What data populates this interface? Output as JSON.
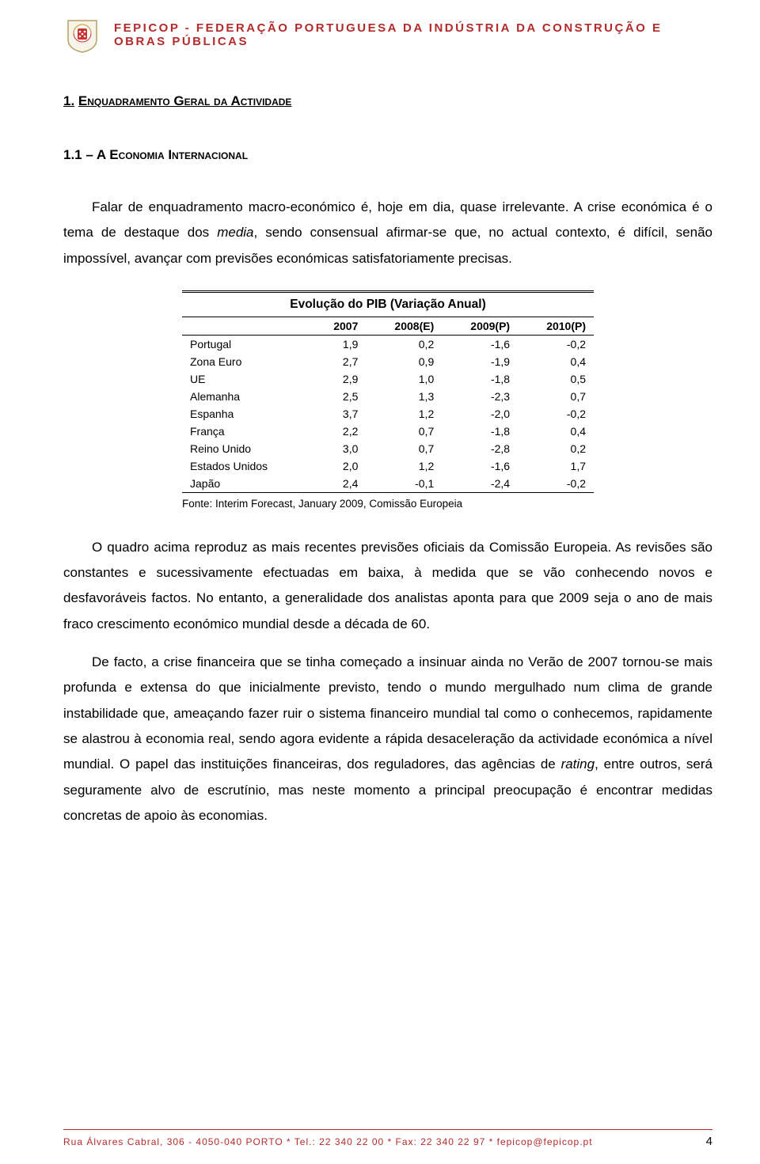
{
  "header": {
    "org": "FEPICOP - FEDERAÇÃO PORTUGUESA DA INDÚSTRIA DA CONSTRUÇÃO E OBRAS PÚBLICAS"
  },
  "section": {
    "number": "1.",
    "title": "Enquadramento Geral da Actividade"
  },
  "subsection": {
    "label": "1.1 – A Economia Internacional"
  },
  "para1a": "Falar de enquadramento macro-económico é, hoje em dia, quase irrelevante. A crise económica é o tema de destaque dos ",
  "para1b": ", sendo consensual afirmar-se que, no actual contexto, é difícil, senão impossível, avançar com previsões económicas satisfatoriamente precisas.",
  "media": "media",
  "table": {
    "caption": "Evolução do PIB (Variação Anual)",
    "columns": [
      "",
      "2007",
      "2008(E)",
      "2009(P)",
      "2010(P)"
    ],
    "rows": [
      [
        "Portugal",
        "1,9",
        "0,2",
        "-1,6",
        "-0,2"
      ],
      [
        "Zona Euro",
        "2,7",
        "0,9",
        "-1,9",
        "0,4"
      ],
      [
        "UE",
        "2,9",
        "1,0",
        "-1,8",
        "0,5"
      ],
      [
        "Alemanha",
        "2,5",
        "1,3",
        "-2,3",
        "0,7"
      ],
      [
        "Espanha",
        "3,7",
        "1,2",
        "-2,0",
        "-0,2"
      ],
      [
        "França",
        "2,2",
        "0,7",
        "-1,8",
        "0,4"
      ],
      [
        "Reino Unido",
        "3,0",
        "0,7",
        "-2,8",
        "0,2"
      ],
      [
        "Estados Unidos",
        "2,0",
        "1,2",
        "-1,6",
        "1,7"
      ],
      [
        "Japão",
        "2,4",
        "-0,1",
        "-2,4",
        "-0,2"
      ]
    ],
    "source": "Fonte: Interim Forecast, January 2009, Comissão Europeia"
  },
  "para2": "O quadro acima reproduz as mais recentes previsões oficiais da Comissão Europeia. As revisões são constantes e sucessivamente efectuadas em baixa, à medida que se vão conhecendo novos e desfavoráveis factos. No entanto, a generalidade dos analistas aponta para que 2009 seja o ano de mais fraco crescimento económico mundial desde a década de 60.",
  "para3a": "De facto, a crise financeira que se tinha começado a insinuar ainda no Verão de 2007 tornou-se mais profunda e extensa do que inicialmente previsto, tendo o mundo mergulhado num clima de grande instabilidade que, ameaçando fazer ruir o sistema financeiro mundial tal como o conhecemos, rapidamente se alastrou à economia real, sendo agora evidente a rápida desaceleração da actividade económica a nível mundial. O papel das instituições financeiras, dos reguladores, das agências de ",
  "rating": "rating",
  "para3b": ", entre outros, será seguramente alvo de escrutínio, mas neste momento a principal preocupação é encontrar medidas concretas de apoio às economias.",
  "footer": {
    "address": "Rua Álvares Cabral, 306 - 4050-040 PORTO * Tel.: 22 340 22 00 * Fax: 22 340 22 97 * fepicop@fepicop.pt",
    "page": "4"
  },
  "logo": {
    "shield_fill": "#f7f4ea",
    "shield_stroke": "#b9a26a",
    "red": "#c8322f",
    "gold": "#d4af37"
  }
}
